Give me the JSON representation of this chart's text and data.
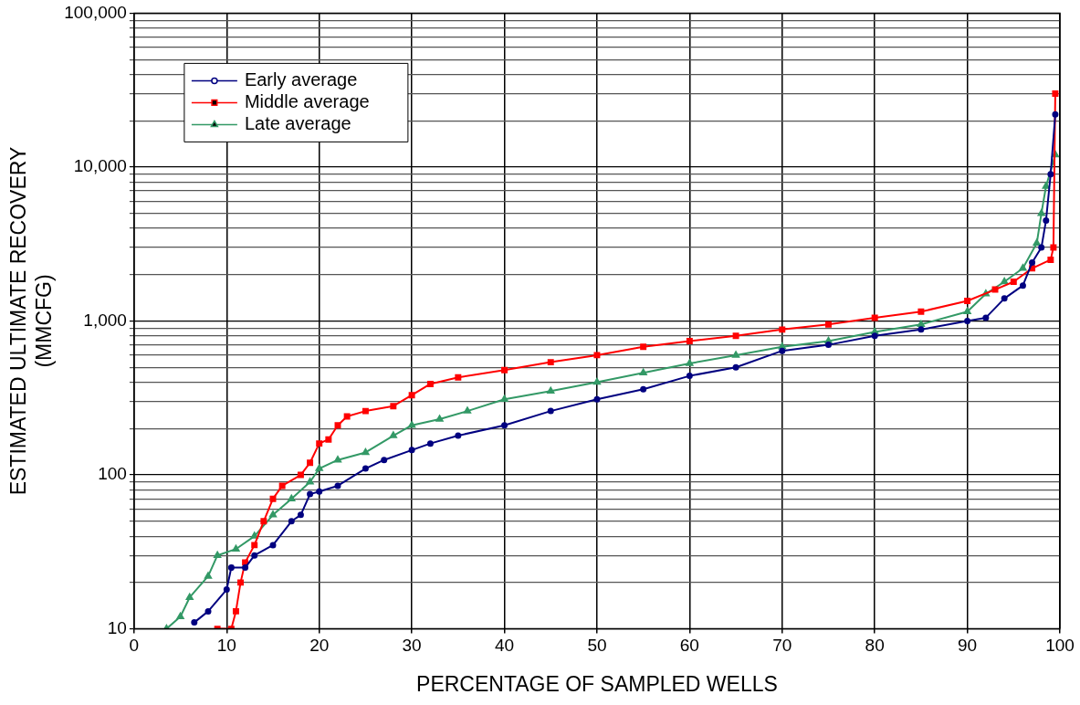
{
  "chart_data": {
    "type": "line",
    "xlabel": "PERCENTAGE OF SAMPLED WELLS",
    "ylabel": "ESTIMATED ULTIMATE RECOVERY\n(MMCFG)",
    "log": "y",
    "grid": true,
    "legend": "top left",
    "line_style": "solid",
    "xlim": [
      0,
      100
    ],
    "xticks": [
      0,
      10,
      20,
      30,
      40,
      50,
      60,
      70,
      80,
      90,
      100
    ],
    "ylim": [
      10,
      100000
    ],
    "yticks": [
      10,
      {
        "value": 20,
        "label": null
      },
      {
        "value": 30,
        "label": null
      },
      {
        "value": 40,
        "label": null
      },
      {
        "value": 50,
        "label": null
      },
      {
        "value": 60,
        "label": null
      },
      {
        "value": 70,
        "label": null
      },
      {
        "value": 80,
        "label": null
      },
      {
        "value": 90,
        "label": null
      },
      100,
      {
        "value": 200,
        "label": null
      },
      {
        "value": 300,
        "label": null
      },
      {
        "value": 400,
        "label": null
      },
      {
        "value": 500,
        "label": null
      },
      {
        "value": 600,
        "label": null
      },
      {
        "value": 700,
        "label": null
      },
      {
        "value": 800,
        "label": null
      },
      {
        "value": 900,
        "label": null
      },
      {
        "value": 1000,
        "label": "1,000"
      },
      {
        "value": 2000,
        "label": null
      },
      {
        "value": 3000,
        "label": null
      },
      {
        "value": 4000,
        "label": null
      },
      {
        "value": 5000,
        "label": null
      },
      {
        "value": 6000,
        "label": null
      },
      {
        "value": 7000,
        "label": null
      },
      {
        "value": 8000,
        "label": null
      },
      {
        "value": 9000,
        "label": null
      },
      {
        "value": 10000,
        "label": "10,000"
      },
      {
        "value": 20000,
        "label": null
      },
      {
        "value": 30000,
        "label": null
      },
      {
        "value": 40000,
        "label": null
      },
      {
        "value": 50000,
        "label": null
      },
      {
        "value": 60000,
        "label": null
      },
      {
        "value": 70000,
        "label": null
      },
      {
        "value": 80000,
        "label": null
      },
      {
        "value": 90000,
        "label": null
      },
      {
        "value": 100000,
        "label": "100,000"
      }
    ],
    "series": [
      {
        "name": "Early average",
        "color": "#000080",
        "marker": "circle",
        "x": [
          6.5,
          8,
          10,
          10.5,
          12,
          13,
          15,
          17,
          18,
          19,
          20,
          22,
          25,
          27,
          30,
          32,
          35,
          40,
          45,
          50,
          55,
          60,
          65,
          70,
          75,
          80,
          85,
          90,
          92,
          94,
          96,
          97,
          98,
          98.5,
          99,
          99.5
        ],
        "values": [
          11,
          13,
          18,
          25,
          25,
          30,
          35,
          50,
          55,
          75,
          78,
          85,
          110,
          125,
          145,
          160,
          180,
          210,
          260,
          310,
          360,
          440,
          500,
          640,
          700,
          800,
          880,
          1000,
          1050,
          1400,
          1700,
          2400,
          3000,
          4500,
          9000,
          22000
        ]
      },
      {
        "name": "Middle average",
        "color": "#ff0000",
        "marker": "square",
        "x": [
          9,
          10.5,
          11,
          11.5,
          12,
          13,
          14,
          15,
          16,
          18,
          19,
          20,
          21,
          22,
          23,
          25,
          28,
          30,
          32,
          35,
          40,
          45,
          50,
          55,
          60,
          65,
          70,
          75,
          80,
          85,
          90,
          93,
          95,
          97,
          99,
          99.3,
          99.5
        ],
        "values": [
          10,
          10,
          13,
          20,
          27,
          35,
          50,
          70,
          85,
          100,
          120,
          160,
          170,
          210,
          240,
          260,
          280,
          330,
          390,
          430,
          480,
          540,
          600,
          680,
          740,
          800,
          880,
          950,
          1050,
          1150,
          1350,
          1600,
          1800,
          2200,
          2500,
          3000,
          30000
        ]
      },
      {
        "name": "Late average",
        "color": "#339966",
        "marker": "triangle",
        "x": [
          3.5,
          5,
          6,
          8,
          9,
          11,
          13,
          15,
          17,
          19,
          20,
          22,
          25,
          28,
          30,
          33,
          36,
          40,
          45,
          50,
          55,
          60,
          65,
          70,
          75,
          80,
          85,
          90,
          92,
          94,
          96,
          97.5,
          98,
          98.5,
          99.5
        ],
        "values": [
          10,
          12,
          16,
          22,
          30,
          33,
          40,
          55,
          70,
          90,
          110,
          125,
          140,
          180,
          210,
          230,
          260,
          310,
          350,
          400,
          460,
          530,
          600,
          680,
          740,
          850,
          950,
          1150,
          1500,
          1800,
          2200,
          3200,
          5000,
          7500,
          12000
        ]
      }
    ]
  }
}
